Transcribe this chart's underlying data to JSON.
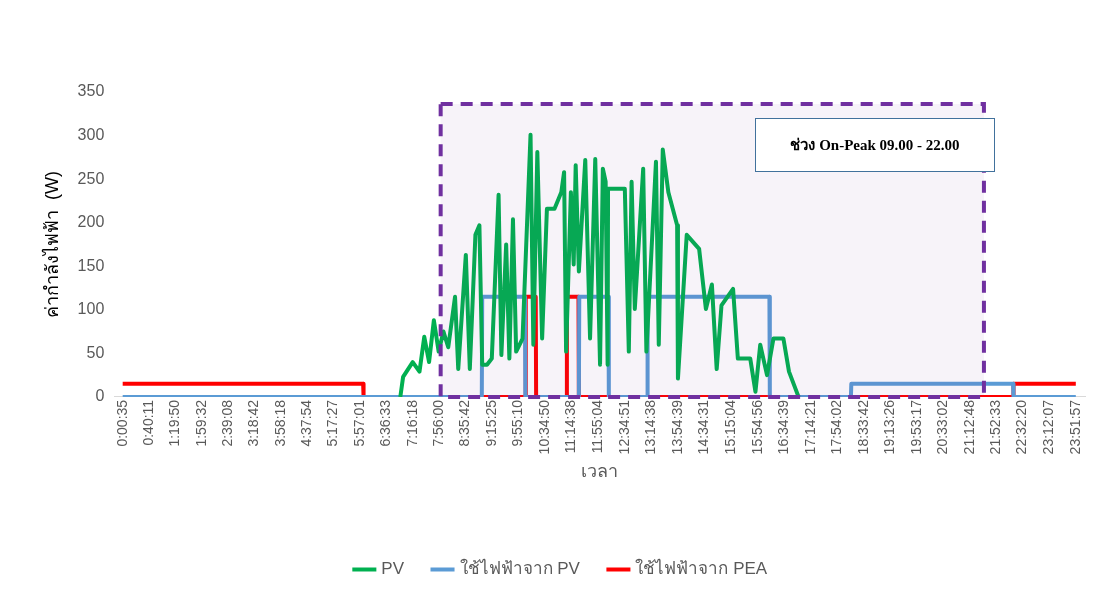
{
  "chart_data": {
    "type": "line",
    "xlabel": "เวลา",
    "ylabel": "ค่ากำลังไฟฟ้า  (W)",
    "xlim": [
      -0.2,
      24.1
    ],
    "ylim": [
      0,
      350
    ],
    "yticks": [
      0,
      50,
      100,
      150,
      200,
      250,
      300,
      350
    ],
    "xticks": [
      {
        "value": 0.0097,
        "label": "0:00:35"
      },
      {
        "value": 0.6697,
        "label": "0:40:11"
      },
      {
        "value": 1.3306,
        "label": "1:19:50"
      },
      {
        "value": 1.9922,
        "label": "1:59:32"
      },
      {
        "value": 2.6522,
        "label": "2:39:08"
      },
      {
        "value": 3.3117,
        "label": "3:18:42"
      },
      {
        "value": 3.9717,
        "label": "3:58:18"
      },
      {
        "value": 4.6317,
        "label": "4:37:54"
      },
      {
        "value": 5.2908,
        "label": "5:17:27"
      },
      {
        "value": 5.9503,
        "label": "5:57:01"
      },
      {
        "value": 6.6092,
        "label": "6:36:33"
      },
      {
        "value": 7.2717,
        "label": "7:16:18"
      },
      {
        "value": 7.9333,
        "label": "7:56:00"
      },
      {
        "value": 8.595,
        "label": "8:35:42"
      },
      {
        "value": 9.2569,
        "label": "9:15:25"
      },
      {
        "value": 9.9194,
        "label": "9:55:10"
      },
      {
        "value": 10.5806,
        "label": "10:34:50"
      },
      {
        "value": 11.2439,
        "label": "11:14:38"
      },
      {
        "value": 11.9178,
        "label": "11:55:04"
      },
      {
        "value": 12.5808,
        "label": "12:34:51"
      },
      {
        "value": 13.2439,
        "label": "13:14:38"
      },
      {
        "value": 13.9108,
        "label": "13:54:39"
      },
      {
        "value": 14.5753,
        "label": "14:34:31"
      },
      {
        "value": 15.2511,
        "label": "15:15:04"
      },
      {
        "value": 15.9156,
        "label": "15:54:56"
      },
      {
        "value": 16.5775,
        "label": "16:34:39"
      },
      {
        "value": 17.2392,
        "label": "17:14:21"
      },
      {
        "value": 17.9006,
        "label": "17:54:02"
      },
      {
        "value": 18.5617,
        "label": "18:33:42"
      },
      {
        "value": 19.2239,
        "label": "19:13:26"
      },
      {
        "value": 19.8881,
        "label": "19:53:17"
      },
      {
        "value": 20.5506,
        "label": "20:33:02"
      },
      {
        "value": 21.2133,
        "label": "21:12:48"
      },
      {
        "value": 21.8758,
        "label": "21:52:33"
      },
      {
        "value": 22.5389,
        "label": "22:32:20"
      },
      {
        "value": 23.2019,
        "label": "23:12:07"
      },
      {
        "value": 23.8658,
        "label": "23:51:57"
      }
    ],
    "series": [
      {
        "name": "PV",
        "color": "#00b050",
        "x": [
          6.96,
          7.03,
          7.27,
          7.44,
          7.56,
          7.68,
          7.8,
          7.92,
          8.04,
          8.16,
          8.33,
          8.41,
          8.6,
          8.7,
          8.84,
          8.94,
          9.01,
          9.13,
          9.25,
          9.42,
          9.49,
          9.61,
          9.69,
          9.78,
          9.86,
          10.02,
          10.22,
          10.29,
          10.39,
          10.51,
          10.63,
          10.82,
          10.99,
          11.06,
          11.11,
          11.23,
          11.3,
          11.35,
          11.43,
          11.59,
          11.71,
          11.84,
          11.96,
          12.03,
          12.1,
          12.15,
          12.16,
          12.34,
          12.58,
          12.68,
          12.75,
          12.83,
          13.04,
          13.12,
          13.36,
          13.43,
          13.53,
          13.67,
          13.89,
          13.91,
          14.13,
          14.44,
          14.61,
          14.76,
          14.88,
          15.0,
          15.29,
          15.41,
          15.72,
          15.85,
          15.97,
          16.14,
          16.3,
          16.55,
          16.69,
          16.93
        ],
        "values": [
          0,
          23,
          40,
          29,
          69,
          40,
          88,
          52,
          75,
          57,
          115,
          32,
          163,
          32,
          186,
          197,
          37,
          37,
          44,
          232,
          48,
          175,
          44,
          204,
          52,
          67,
          301,
          60,
          281,
          67,
          216,
          216,
          235,
          258,
          52,
          235,
          152,
          266,
          144,
          272,
          67,
          273,
          37,
          262,
          247,
          37,
          239,
          239,
          239,
          52,
          247,
          101,
          262,
          52,
          270,
          60,
          284,
          235,
          197,
          21,
          186,
          170,
          101,
          129,
          32,
          105,
          124,
          44,
          44,
          6,
          60,
          25,
          67,
          67,
          29,
          0
        ]
      },
      {
        "name": "ใช้ไฟฟ้าจาก PV",
        "color": "#5b9bd5",
        "x": [
          0.01,
          9.0,
          9.01,
          10.08,
          10.09,
          11.43,
          11.44,
          12.17,
          12.18,
          13.14,
          13.15,
          16.2,
          16.21,
          18.24,
          18.25,
          22.3,
          22.31,
          23.87
        ],
        "values": [
          0,
          0,
          115,
          115,
          0,
          0,
          115,
          115,
          0,
          0,
          115,
          115,
          0,
          0,
          15,
          15,
          0,
          0
        ]
      },
      {
        "name": "ใช้ไฟฟ้าจาก PEA",
        "color": "#ff0000",
        "x": [
          0.01,
          6.03,
          6.04,
          10.09,
          10.1,
          10.35,
          10.36,
          11.12,
          11.13,
          11.42,
          11.43,
          22.3,
          22.31,
          23.87
        ],
        "values": [
          15,
          15,
          0,
          0,
          115,
          115,
          0,
          0,
          115,
          115,
          0,
          0,
          15,
          15
        ]
      }
    ],
    "annotations": [
      "ช่วง On-Peak 09.00 - 22.00"
    ],
    "bands": [
      {
        "axis": "x",
        "from": 7.97,
        "to": 21.57,
        "color": "#7030a0"
      }
    ],
    "legend": "bottom",
    "grid": false
  }
}
